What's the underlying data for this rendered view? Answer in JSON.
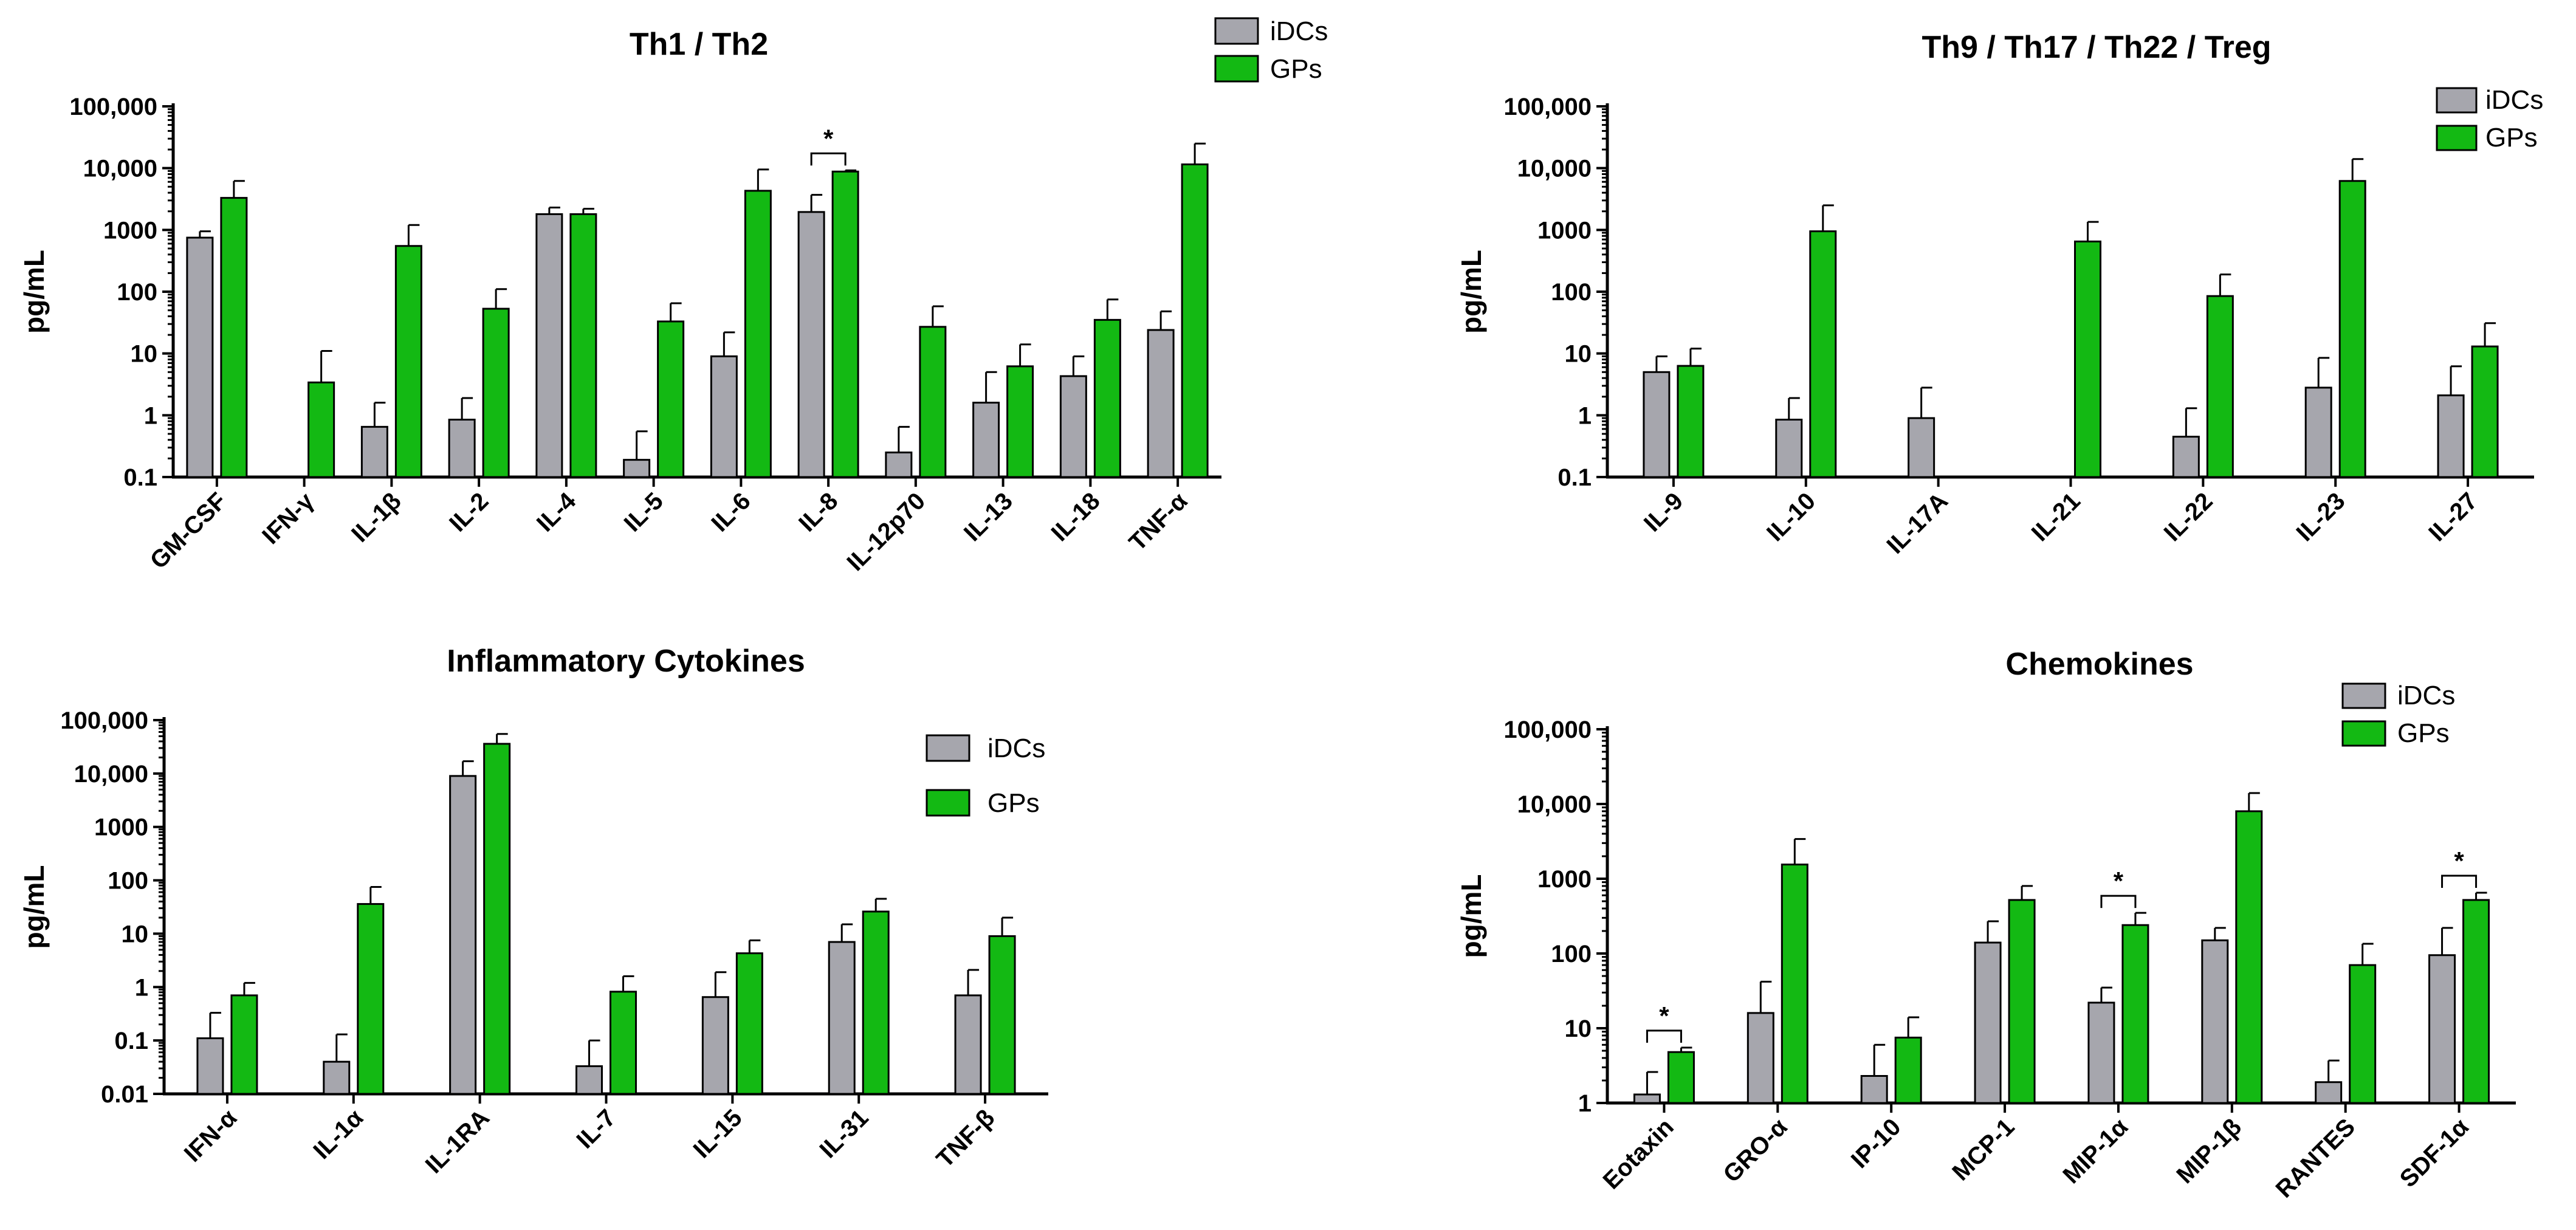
{
  "colors": {
    "iDCs": "#a6a6ad",
    "GPs": "#13b913"
  },
  "chart_data": [
    {
      "type": "bar",
      "title": "Th1 / Th2",
      "ylabel": "pg/mL",
      "yscale": "log",
      "ylim": [
        0.1,
        100000
      ],
      "yticks": [
        0.1,
        1,
        10,
        100,
        1000,
        10000,
        100000
      ],
      "ytick_labels": [
        "0.1",
        "1",
        "10",
        "100",
        "1000",
        "10,000",
        "100,000"
      ],
      "categories": [
        "GM-CSF",
        "IFN-γ",
        "IL-1β",
        "IL-2",
        "IL-4",
        "IL-5",
        "IL-6",
        "IL-8",
        "IL-12p70",
        "IL-13",
        "IL-18",
        "TNF-α"
      ],
      "series": [
        {
          "name": "iDCs",
          "values": [
            750,
            null,
            0.65,
            0.85,
            1800,
            0.19,
            9,
            1950,
            0.25,
            1.6,
            4.3,
            24
          ],
          "errors": [
            950,
            null,
            1.6,
            1.9,
            2300,
            0.55,
            22,
            3700,
            0.65,
            5,
            9,
            48
          ]
        },
        {
          "name": "GPs",
          "values": [
            3300,
            3.4,
            550,
            53,
            1800,
            33,
            4300,
            8800,
            27,
            6.2,
            35,
            11500
          ],
          "errors": [
            6200,
            11,
            1200,
            110,
            2200,
            65,
            9500,
            9200,
            58,
            14,
            75,
            25000
          ]
        }
      ],
      "significance": [
        {
          "category": "IL-8",
          "label": "*"
        }
      ],
      "legend": "top-right"
    },
    {
      "type": "bar",
      "title": "Th9 / Th17 / Th22 / Treg",
      "ylabel": "pg/mL",
      "yscale": "log",
      "ylim": [
        0.1,
        100000
      ],
      "yticks": [
        0.1,
        1,
        10,
        100,
        1000,
        10000,
        100000
      ],
      "ytick_labels": [
        "0.1",
        "1",
        "10",
        "100",
        "1000",
        "10,000",
        "100,000"
      ],
      "categories": [
        "IL-9",
        "IL-10",
        "IL-17A",
        "IL-21",
        "IL-22",
        "IL-23",
        "IL-27"
      ],
      "series": [
        {
          "name": "iDCs",
          "values": [
            5,
            0.85,
            0.9,
            null,
            0.45,
            2.8,
            2.1
          ],
          "errors": [
            9,
            1.9,
            2.8,
            null,
            1.3,
            8.5,
            6.2
          ]
        },
        {
          "name": "GPs",
          "values": [
            6.3,
            950,
            null,
            650,
            85,
            6200,
            13
          ],
          "errors": [
            12,
            2500,
            null,
            1350,
            190,
            14000,
            31
          ]
        }
      ],
      "significance": [],
      "legend": "top-right"
    },
    {
      "type": "bar",
      "title": "Inflammatory Cytokines",
      "ylabel": "pg/mL",
      "yscale": "log",
      "ylim": [
        0.01,
        100000
      ],
      "yticks": [
        0.01,
        0.1,
        1,
        10,
        100,
        1000,
        10000,
        100000
      ],
      "ytick_labels": [
        "0.01",
        "0.1",
        "1",
        "10",
        "100",
        "1000",
        "10,000",
        "100,000"
      ],
      "categories": [
        "IFN-α",
        "IL-1α",
        "IL-1RA",
        "IL-7",
        "IL-15",
        "IL-31",
        "TNF-β"
      ],
      "series": [
        {
          "name": "iDCs",
          "values": [
            0.11,
            0.04,
            9000,
            0.033,
            0.65,
            7,
            0.7
          ],
          "errors": [
            0.33,
            0.13,
            17000,
            0.1,
            1.9,
            15,
            2.1
          ]
        },
        {
          "name": "GPs",
          "values": [
            0.7,
            36,
            36000,
            0.82,
            4.3,
            26,
            9
          ],
          "errors": [
            1.2,
            75,
            55000,
            1.6,
            7.5,
            45,
            20
          ]
        }
      ],
      "significance": [],
      "legend": "top-right"
    },
    {
      "type": "bar",
      "title": "Chemokines",
      "ylabel": "pg/mL",
      "yscale": "log",
      "ylim": [
        1,
        100000
      ],
      "yticks": [
        1,
        10,
        100,
        1000,
        10000,
        100000
      ],
      "ytick_labels": [
        "1",
        "10",
        "100",
        "1000",
        "10,000",
        "100,000"
      ],
      "categories": [
        "Eotaxin",
        "GRO-α",
        "IP-10",
        "MCP-1",
        "MIP-1α",
        "MIP-1β",
        "RANTES",
        "SDF-1α"
      ],
      "series": [
        {
          "name": "iDCs",
          "values": [
            1.3,
            16,
            2.3,
            140,
            22,
            150,
            1.9,
            95
          ],
          "errors": [
            2.6,
            42,
            6,
            270,
            35,
            220,
            3.7,
            220
          ]
        },
        {
          "name": "GPs",
          "values": [
            4.8,
            1550,
            7.5,
            520,
            240,
            8000,
            70,
            520
          ],
          "errors": [
            5.5,
            3400,
            14,
            800,
            350,
            14000,
            135,
            650
          ]
        }
      ],
      "significance": [
        {
          "category": "Eotaxin",
          "label": "*"
        },
        {
          "category": "MIP-1α",
          "label": "*"
        },
        {
          "category": "SDF-1α",
          "label": "*"
        }
      ],
      "legend": "top-right"
    }
  ]
}
